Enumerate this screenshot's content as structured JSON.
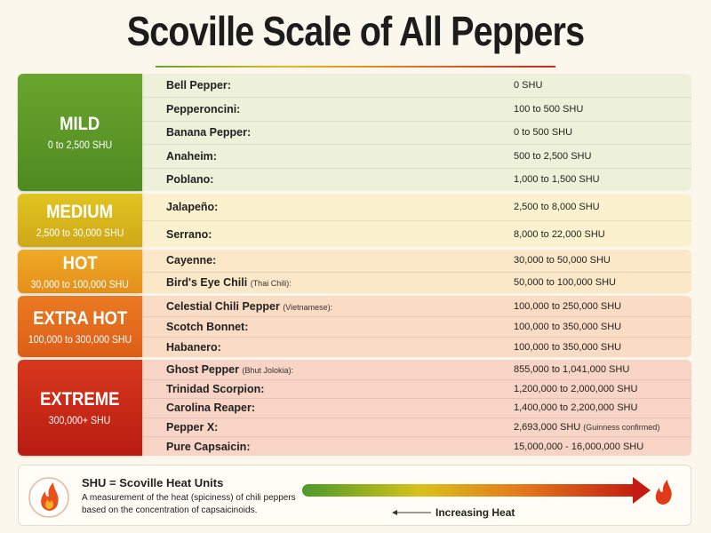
{
  "title": "Scoville Scale of All Peppers",
  "groups": [
    {
      "name": "MILD",
      "range": "0 to 2,500 SHU",
      "rows": [
        {
          "pepper": "Bell Pepper:",
          "shu": "0 SHU"
        },
        {
          "pepper": "Pepperoncini:",
          "shu": "100 to 500 SHU"
        },
        {
          "pepper": "Banana Pepper:",
          "shu": "0 to 500 SHU"
        },
        {
          "pepper": "Anaheim:",
          "shu": "500 to 2,500 SHU"
        },
        {
          "pepper": "Poblano:",
          "shu": "1,000 to 1,500 SHU"
        }
      ]
    },
    {
      "name": "MEDIUM",
      "range": "2,500 to 30,000 SHU",
      "rows": [
        {
          "pepper": "Jalapeño:",
          "shu": "2,500 to 8,000 SHU"
        },
        {
          "pepper": "Serrano:",
          "shu": "8,000 to 22,000 SHU"
        }
      ]
    },
    {
      "name": "HOT",
      "range": "30,000 to 100,000 SHU",
      "rows": [
        {
          "pepper": "Cayenne:",
          "shu": "30,000 to 50,000 SHU"
        },
        {
          "pepper": "Bird's Eye Chili",
          "note": "(Thai Chili):",
          "shu": "50,000 to 100,000 SHU"
        }
      ]
    },
    {
      "name": "EXTRA HOT",
      "range": "100,000 to 300,000 SHU",
      "rows": [
        {
          "pepper": "Celestial Chili Pepper",
          "note": "(Vietnamese):",
          "shu": "100,000 to 250,000 SHU"
        },
        {
          "pepper": "Scotch Bonnet:",
          "shu": "100,000 to 350,000 SHU"
        },
        {
          "pepper": "Habanero:",
          "shu": "100,000 to 350,000 SHU"
        }
      ]
    },
    {
      "name": "EXTREME",
      "range": "300,000+ SHU",
      "rows": [
        {
          "pepper": "Ghost Pepper",
          "note": "(Bhut Jolokia):",
          "shu": "855,000 to 1,041,000 SHU"
        },
        {
          "pepper": "Trinidad Scorpion:",
          "shu": "1,200,000 to 2,000,000 SHU"
        },
        {
          "pepper": "Carolina Reaper:",
          "shu": "1,400,000 to 2,200,000 SHU"
        },
        {
          "pepper": "Pepper X:",
          "shu": "2,693,000 SHU",
          "shu_note": "(Guinness confirmed)"
        },
        {
          "pepper": "Pure Capsaicin:",
          "shu": "15,000,000 - 16,000,000 SHU"
        }
      ]
    }
  ],
  "footer": {
    "title": "SHU = Scoville Heat Units",
    "description": [
      "A measurement of the heat (spiciness) of chili peppers",
      "based on the concentration of capsaicinoids."
    ],
    "arrow_label": "Increasing Heat"
  }
}
